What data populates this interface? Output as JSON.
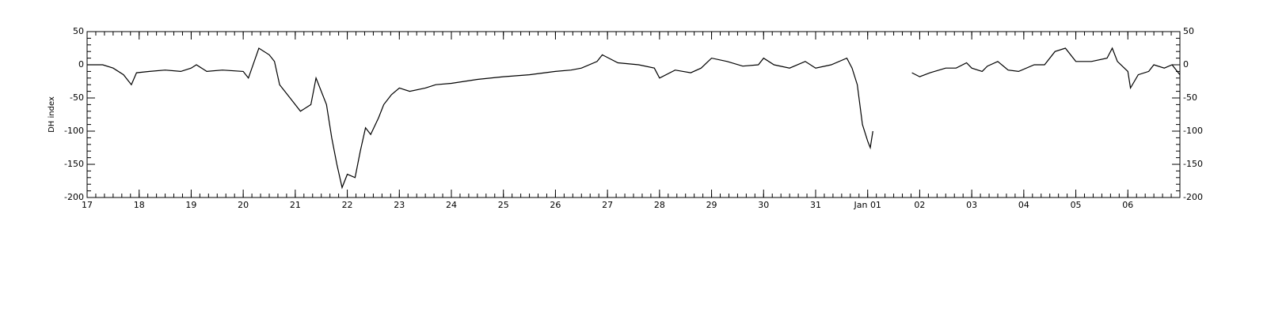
{
  "chart_data": {
    "type": "line",
    "y_label": "DH index",
    "xlim": [
      0,
      21
    ],
    "xticks": [
      {
        "value": 0,
        "label": "17"
      },
      {
        "value": 1,
        "label": "18"
      },
      {
        "value": 2,
        "label": "19"
      },
      {
        "value": 3,
        "label": "20"
      },
      {
        "value": 4,
        "label": "21"
      },
      {
        "value": 5,
        "label": "22"
      },
      {
        "value": 6,
        "label": "23"
      },
      {
        "value": 7,
        "label": "24"
      },
      {
        "value": 8,
        "label": "25"
      },
      {
        "value": 9,
        "label": "26"
      },
      {
        "value": 10,
        "label": "27"
      },
      {
        "value": 11,
        "label": "28"
      },
      {
        "value": 12,
        "label": "29"
      },
      {
        "value": 13,
        "label": "30"
      },
      {
        "value": 14,
        "label": "31"
      },
      {
        "value": 15,
        "label": "Jan 01"
      },
      {
        "value": 16,
        "label": "02"
      },
      {
        "value": 17,
        "label": "03"
      },
      {
        "value": 18,
        "label": "04"
      },
      {
        "value": 19,
        "label": "05"
      },
      {
        "value": 20,
        "label": "06"
      }
    ],
    "ylim": [
      -200,
      50
    ],
    "yticks": [
      -200,
      -150,
      -100,
      -50,
      0,
      50
    ],
    "series": [
      {
        "color": "#000000",
        "x": [
          0,
          0.3,
          0.5,
          0.7,
          0.85,
          0.95,
          1.2,
          1.5,
          1.8,
          2.0,
          2.1,
          2.3,
          2.6,
          3.0,
          3.1,
          3.3,
          3.5,
          3.6,
          3.7,
          3.9,
          4.1,
          4.3,
          4.4,
          4.6,
          4.7,
          4.8,
          4.9,
          5.0,
          5.15,
          5.25,
          5.35,
          5.45,
          5.6,
          5.7,
          5.85,
          6.0,
          6.2,
          6.5,
          6.7,
          7.0,
          7.5,
          8.0,
          8.5,
          9.0,
          9.3,
          9.5,
          9.8,
          9.9,
          10.2,
          10.6,
          10.9,
          11.0,
          11.3,
          11.6,
          11.8,
          12.0,
          12.3,
          12.6,
          12.9,
          13.0,
          13.2,
          13.5,
          13.8,
          14.0,
          14.3,
          14.6,
          14.7,
          14.8,
          14.9,
          15.0,
          15.05,
          15.1,
          15.5,
          15.85,
          16.0,
          16.2,
          16.5,
          16.7,
          16.9,
          17.0,
          17.2,
          17.3,
          17.5,
          17.7,
          17.9,
          18.2,
          18.4,
          18.6,
          18.8,
          19.0,
          19.3,
          19.6,
          19.7,
          19.8,
          20.0,
          20.05,
          20.2,
          20.4,
          20.5,
          20.7,
          20.85,
          21.0
        ],
        "values": [
          0,
          0,
          -5,
          -15,
          -30,
          -12,
          -10,
          -8,
          -10,
          -5,
          0,
          -10,
          -8,
          -10,
          -20,
          25,
          15,
          5,
          -30,
          -50,
          -70,
          -60,
          -20,
          -60,
          -110,
          -150,
          -185,
          -165,
          -170,
          -130,
          -95,
          -105,
          -80,
          -60,
          -45,
          -35,
          -40,
          -35,
          -30,
          -28,
          -22,
          -18,
          -15,
          -10,
          -8,
          -5,
          5,
          15,
          3,
          0,
          -5,
          -20,
          -8,
          -12,
          -5,
          10,
          5,
          -2,
          0,
          10,
          0,
          -5,
          5,
          -5,
          0,
          10,
          -5,
          -30,
          -90,
          -115,
          -125,
          -100,
          null,
          -12,
          -18,
          -12,
          -5,
          -5,
          3,
          -5,
          -10,
          -2,
          5,
          -8,
          -10,
          0,
          0,
          20,
          25,
          5,
          5,
          10,
          25,
          5,
          -10,
          -35,
          -15,
          -10,
          0,
          -5,
          0,
          -15
        ]
      }
    ]
  }
}
